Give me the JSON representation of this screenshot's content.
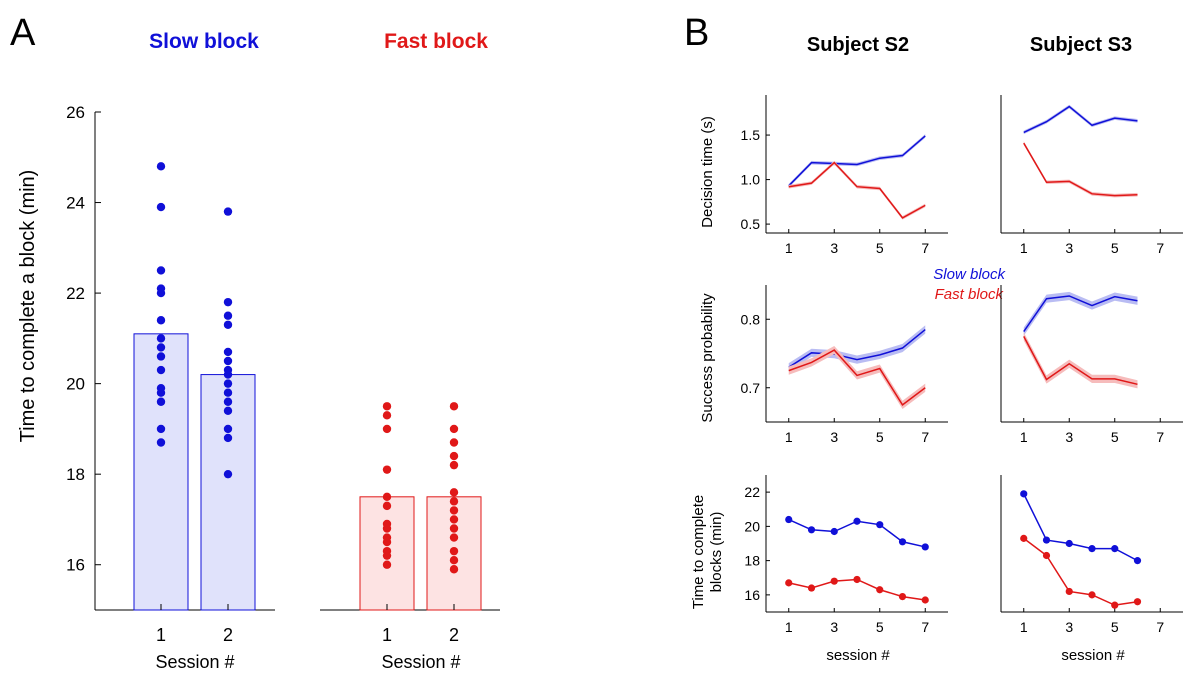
{
  "panel_labels": {
    "a": "A",
    "b": "B"
  },
  "panel_a": {
    "slow_title": "Slow block",
    "fast_title": "Fast block",
    "ylabel": "Time to complete a block (min)",
    "xlabel": "Session #",
    "yticks": [
      "16",
      "18",
      "20",
      "22",
      "24",
      "26"
    ]
  },
  "panel_b": {
    "col_titles": [
      "Subject S2",
      "Subject S3"
    ],
    "row_labels": {
      "decision": "Decision time (s)",
      "success": "Success probability",
      "time_line1": "Time to complete",
      "time_line2": "blocks (min)"
    },
    "xlabel": "session #",
    "legend": {
      "slow": "Slow block",
      "fast": "Fast block"
    },
    "xticks": [
      "1",
      "3",
      "5",
      "7"
    ]
  },
  "colors": {
    "slow": "#1010d8",
    "fast": "#e01818",
    "slow_fill": "#e0e2fb",
    "fast_fill": "#fde3e3",
    "slow_band": "#b9bcf3",
    "fast_band": "#f6bcbc",
    "axis": "#000000"
  },
  "chart_data": [
    {
      "type": "bar",
      "title": "Slow block",
      "xlabel": "Session #",
      "ylabel": "Time to complete a block (min)",
      "ylim": [
        15,
        26
      ],
      "categories": [
        "1",
        "2"
      ],
      "values": [
        21.1,
        20.2
      ],
      "points": [
        [
          24.8,
          23.9,
          22.5,
          22.1,
          22.0,
          21.4,
          21.0,
          20.8,
          20.6,
          20.3,
          19.9,
          19.8,
          19.6,
          19.0,
          18.7
        ],
        [
          23.8,
          21.8,
          21.5,
          21.3,
          20.7,
          20.5,
          20.3,
          20.2,
          20.0,
          19.8,
          19.6,
          19.4,
          19.0,
          18.8,
          18.0
        ]
      ]
    },
    {
      "type": "bar",
      "title": "Fast block",
      "xlabel": "Session #",
      "ylim": [
        15,
        26
      ],
      "categories": [
        "1",
        "2"
      ],
      "values": [
        17.5,
        17.5
      ],
      "points": [
        [
          19.5,
          19.3,
          19.0,
          18.1,
          17.5,
          17.3,
          16.9,
          16.8,
          16.6,
          16.5,
          16.3,
          16.2,
          16.0
        ],
        [
          19.5,
          19.0,
          18.7,
          18.4,
          18.2,
          17.6,
          17.4,
          17.2,
          17.0,
          16.8,
          16.6,
          16.3,
          16.1,
          15.9
        ]
      ]
    },
    {
      "type": "line",
      "subject": "Subject S2",
      "ylabel": "Decision time (s)",
      "ylim": [
        0.4,
        1.95
      ],
      "xlim": [
        0,
        8
      ],
      "series": [
        {
          "name": "Slow block",
          "x": [
            1,
            2,
            3,
            4,
            5,
            6,
            7
          ],
          "y": [
            0.93,
            1.19,
            1.18,
            1.17,
            1.24,
            1.27,
            1.49
          ],
          "band": 0.02
        },
        {
          "name": "Fast block",
          "x": [
            1,
            2,
            3,
            4,
            5,
            6,
            7
          ],
          "y": [
            0.92,
            0.96,
            1.19,
            0.92,
            0.9,
            0.57,
            0.71
          ],
          "band": 0.02
        }
      ]
    },
    {
      "type": "line",
      "subject": "Subject S3",
      "ylim": [
        0.4,
        1.95
      ],
      "xlim": [
        0,
        8
      ],
      "series": [
        {
          "name": "Slow block",
          "x": [
            1,
            2,
            3,
            4,
            5,
            6
          ],
          "y": [
            1.53,
            1.65,
            1.82,
            1.61,
            1.69,
            1.66
          ],
          "band": 0.02
        },
        {
          "name": "Fast block",
          "x": [
            1,
            2,
            3,
            4,
            5,
            6
          ],
          "y": [
            1.41,
            0.97,
            0.98,
            0.84,
            0.82,
            0.83
          ],
          "band": 0.02
        }
      ]
    },
    {
      "type": "line",
      "subject": "Subject S2",
      "ylabel": "Success probability",
      "ylim": [
        0.65,
        0.85
      ],
      "xlim": [
        0,
        8
      ],
      "series": [
        {
          "name": "Slow block",
          "x": [
            1,
            2,
            3,
            4,
            5,
            6,
            7
          ],
          "y": [
            0.73,
            0.751,
            0.749,
            0.741,
            0.748,
            0.758,
            0.785
          ],
          "band": 0.006
        },
        {
          "name": "Fast block",
          "x": [
            1,
            2,
            3,
            4,
            5,
            6,
            7
          ],
          "y": [
            0.725,
            0.737,
            0.755,
            0.718,
            0.728,
            0.675,
            0.7
          ],
          "band": 0.006
        }
      ]
    },
    {
      "type": "line",
      "subject": "Subject S3",
      "ylim": [
        0.65,
        0.85
      ],
      "xlim": [
        0,
        8
      ],
      "series": [
        {
          "name": "Slow block",
          "x": [
            1,
            2,
            3,
            4,
            5,
            6
          ],
          "y": [
            0.782,
            0.83,
            0.834,
            0.82,
            0.833,
            0.827
          ],
          "band": 0.006
        },
        {
          "name": "Fast block",
          "x": [
            1,
            2,
            3,
            4,
            5,
            6
          ],
          "y": [
            0.775,
            0.712,
            0.735,
            0.713,
            0.713,
            0.705
          ],
          "band": 0.006
        }
      ]
    },
    {
      "type": "line",
      "subject": "Subject S2",
      "ylabel": "Time to complete blocks (min)",
      "xlabel": "session #",
      "ylim": [
        15,
        23
      ],
      "xlim": [
        0,
        8
      ],
      "series": [
        {
          "name": "Slow block",
          "x": [
            1,
            2,
            3,
            4,
            5,
            6,
            7
          ],
          "y": [
            20.4,
            19.8,
            19.7,
            20.3,
            20.1,
            19.1,
            18.8
          ],
          "markers": true
        },
        {
          "name": "Fast block",
          "x": [
            1,
            2,
            3,
            4,
            5,
            6,
            7
          ],
          "y": [
            16.7,
            16.4,
            16.8,
            16.9,
            16.3,
            15.9,
            15.7
          ],
          "markers": true
        }
      ]
    },
    {
      "type": "line",
      "subject": "Subject S3",
      "xlabel": "session #",
      "ylim": [
        15,
        23
      ],
      "xlim": [
        0,
        8
      ],
      "series": [
        {
          "name": "Slow block",
          "x": [
            1,
            2,
            3,
            4,
            5,
            6
          ],
          "y": [
            21.9,
            19.2,
            19.0,
            18.7,
            18.7,
            18.0
          ],
          "markers": true
        },
        {
          "name": "Fast block",
          "x": [
            1,
            2,
            3,
            4,
            5,
            6
          ],
          "y": [
            19.3,
            18.3,
            16.2,
            16.0,
            15.4,
            15.6
          ],
          "markers": true
        }
      ]
    }
  ]
}
